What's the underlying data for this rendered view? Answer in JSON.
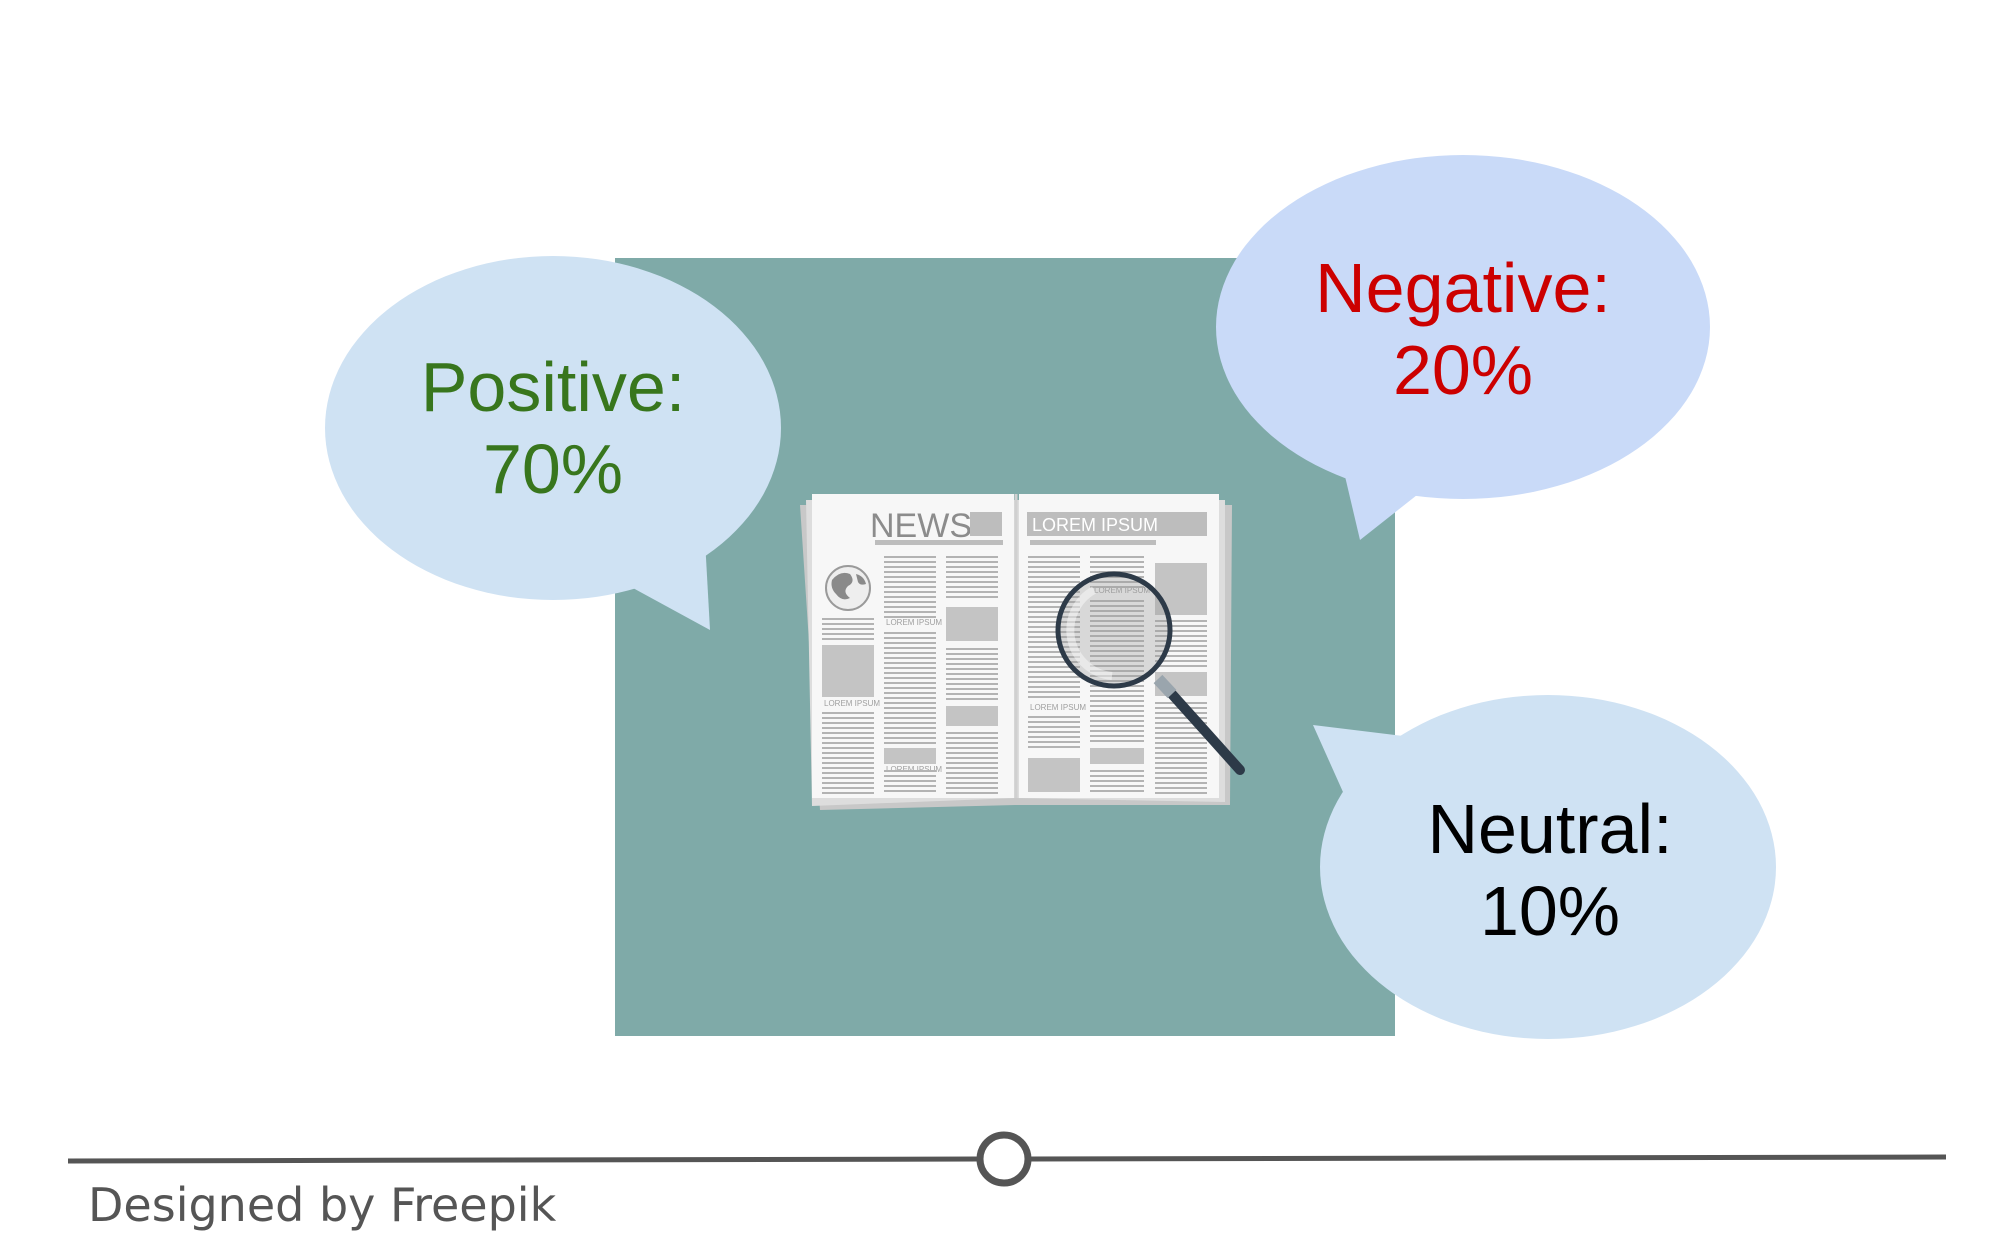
{
  "colors": {
    "panel": "#7faaa8",
    "bubble_light": "#cfe2f3",
    "bubble_blue": "#c9daf8",
    "positive": "#38761d",
    "negative": "#cc0000",
    "neutral": "#000000",
    "timeline": "#555555"
  },
  "illustration": {
    "news_heading": "NEWS",
    "lorem_heading": "LOREM IPSUM",
    "small_caption": "LOREM IPSUM"
  },
  "bubbles": {
    "positive": {
      "label": "Positive:",
      "value": "70%"
    },
    "negative": {
      "label": "Negative:",
      "value": "20%"
    },
    "neutral": {
      "label": "Neutral:",
      "value": "10%"
    }
  },
  "footer": {
    "credit": "Designed by Freepik"
  }
}
